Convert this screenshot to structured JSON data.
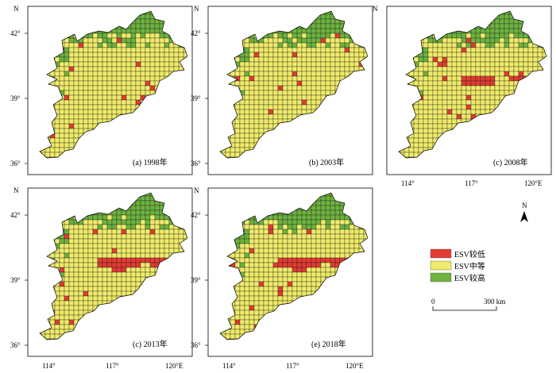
{
  "figure": {
    "north_label": "N",
    "east_suffix_label": "120°E",
    "lat_ticks": [
      "42°",
      "39°",
      "36°"
    ],
    "lon_ticks": [
      "114°",
      "117°"
    ],
    "colors": {
      "low": "#e23b32",
      "medium": "#f0ec6a",
      "high": "#6cb33f",
      "grid_line": "#1a1a1a",
      "frame": "#000000"
    }
  },
  "panels": [
    {
      "caption": "(a) 1998年",
      "low_share": 0.07,
      "high_share": 0.26
    },
    {
      "caption": "(b) 2003年",
      "low_share": 0.08,
      "high_share": 0.27
    },
    {
      "caption": "(c) 2008年",
      "low_share": 0.12,
      "high_share": 0.28
    },
    {
      "caption": "(c) 2013年",
      "low_share": 0.15,
      "high_share": 0.28
    },
    {
      "caption": "(e) 2018年",
      "low_share": 0.15,
      "high_share": 0.29
    }
  ],
  "legend": {
    "items": [
      {
        "label": "ESV较低",
        "color_key": "low"
      },
      {
        "label": "ESV中等",
        "color_key": "medium"
      },
      {
        "label": "ESV较高",
        "color_key": "high"
      }
    ]
  },
  "scale_bar": {
    "start_label": "0",
    "end_label": "300 km"
  },
  "north_arrow": {
    "label": "N"
  }
}
